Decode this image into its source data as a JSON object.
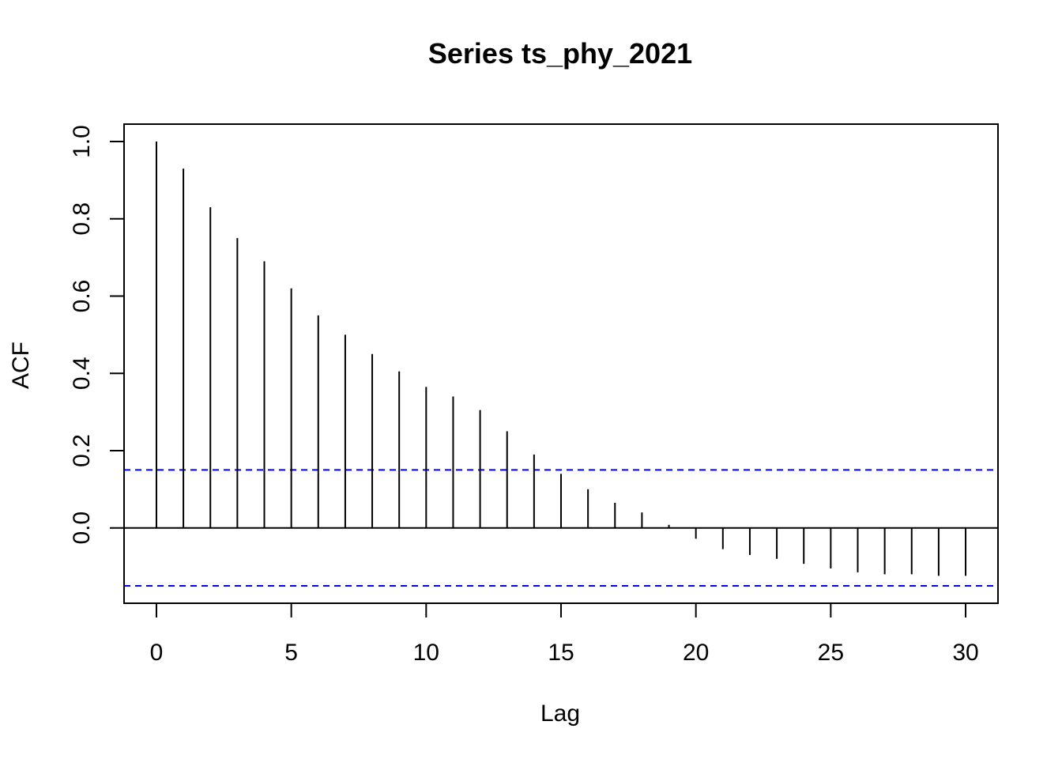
{
  "chart_data": {
    "type": "bar",
    "title": "Series  ts_phy_2021",
    "xlabel": "Lag",
    "ylabel": "ACF",
    "xlim": [
      -1.2,
      31.2
    ],
    "ylim": [
      -0.195,
      1.045
    ],
    "x_ticks": [
      0,
      5,
      10,
      15,
      20,
      25,
      30
    ],
    "y_ticks": [
      0.0,
      0.2,
      0.4,
      0.6,
      0.8,
      1.0
    ],
    "x_tick_labels": [
      "0",
      "5",
      "10",
      "15",
      "20",
      "25",
      "30"
    ],
    "y_tick_labels": [
      "0.0",
      "0.2",
      "0.4",
      "0.6",
      "0.8",
      "1.0"
    ],
    "lags": [
      0,
      1,
      2,
      3,
      4,
      5,
      6,
      7,
      8,
      9,
      10,
      11,
      12,
      13,
      14,
      15,
      16,
      17,
      18,
      19,
      20,
      21,
      22,
      23,
      24,
      25,
      26,
      27,
      28,
      29,
      30
    ],
    "values": [
      1.0,
      0.93,
      0.83,
      0.75,
      0.69,
      0.62,
      0.55,
      0.5,
      0.45,
      0.405,
      0.365,
      0.34,
      0.305,
      0.25,
      0.19,
      0.14,
      0.1,
      0.065,
      0.04,
      0.008,
      -0.028,
      -0.055,
      -0.07,
      -0.08,
      -0.093,
      -0.105,
      -0.115,
      -0.12,
      -0.12,
      -0.124,
      -0.124
    ],
    "confidence_limit": 0.15,
    "zero_line": true,
    "grid": false,
    "colors": {
      "bars": "#000000",
      "confidence": "#0000ff",
      "axis": "#000000"
    }
  }
}
